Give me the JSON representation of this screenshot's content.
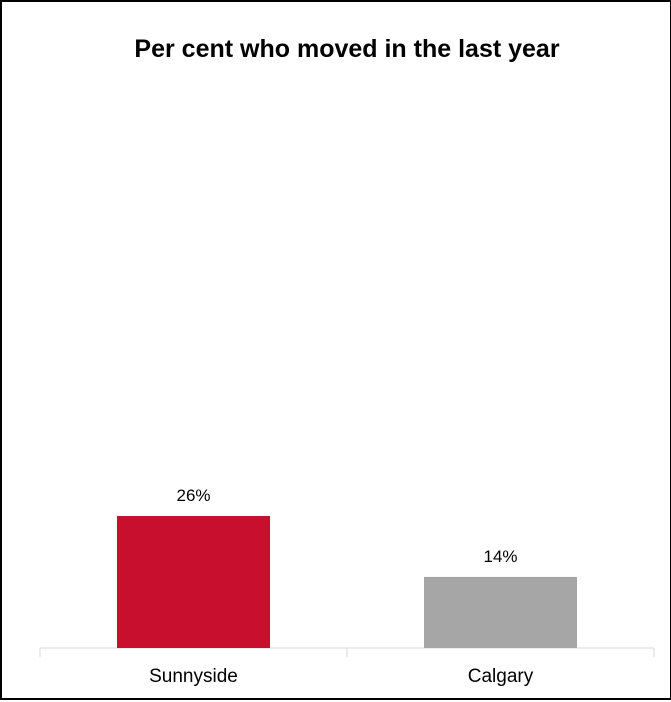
{
  "chart_data": {
    "type": "bar",
    "title": "Per cent who moved in the last year",
    "categories": [
      "Sunnyside",
      "Calgary"
    ],
    "values": [
      26,
      14
    ],
    "data_labels": [
      "26%",
      "14%"
    ],
    "colors": [
      "#c8102e",
      "#a6a6a6"
    ],
    "xlabel": "",
    "ylabel": "",
    "ylim": [
      0,
      30
    ],
    "grid": false,
    "legend": "none"
  }
}
